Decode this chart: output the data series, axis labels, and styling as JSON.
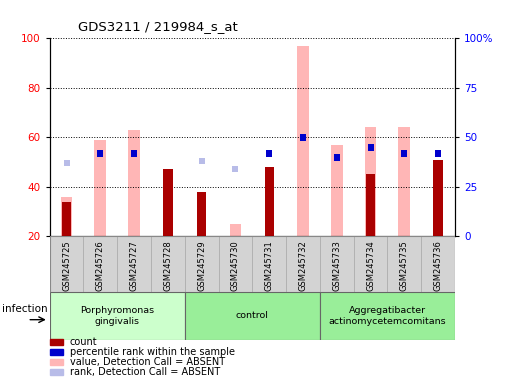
{
  "title": "GDS3211 / 219984_s_at",
  "samples": [
    "GSM245725",
    "GSM245726",
    "GSM245727",
    "GSM245728",
    "GSM245729",
    "GSM245730",
    "GSM245731",
    "GSM245732",
    "GSM245733",
    "GSM245734",
    "GSM245735",
    "GSM245736"
  ],
  "groups": [
    {
      "label": "Porphyromonas\ngingivalis",
      "start": 0,
      "end": 3,
      "color": "#bbffbb"
    },
    {
      "label": "control",
      "start": 4,
      "end": 7,
      "color": "#99ee99"
    },
    {
      "label": "Aggregatibacter\nactinomycetemcomitans",
      "start": 8,
      "end": 11,
      "color": "#88ee88"
    }
  ],
  "count_values": [
    34,
    null,
    null,
    47,
    38,
    null,
    48,
    null,
    null,
    45,
    null,
    51
  ],
  "rank_values_pct": [
    null,
    42,
    42,
    null,
    null,
    null,
    42,
    50,
    40,
    45,
    42,
    42
  ],
  "absent_value": [
    36,
    59,
    63,
    null,
    null,
    25,
    null,
    97,
    57,
    64,
    64,
    null
  ],
  "absent_rank_pct": [
    37,
    null,
    null,
    null,
    38,
    34,
    null,
    null,
    null,
    null,
    null,
    null
  ],
  "ylim_left": [
    20,
    100
  ],
  "yticks_left": [
    20,
    40,
    60,
    80,
    100
  ],
  "yticks_right": [
    0,
    25,
    50,
    75,
    100
  ],
  "yticklabels_right": [
    "0",
    "25",
    "50",
    "75",
    "100%"
  ],
  "bar_color_count": "#aa0000",
  "bar_color_rank": "#0000cc",
  "bar_color_absent_value": "#ffb6b6",
  "bar_color_absent_rank": "#b8bce8",
  "group_row_color": "#d3d3d3",
  "infection_label": "infection"
}
